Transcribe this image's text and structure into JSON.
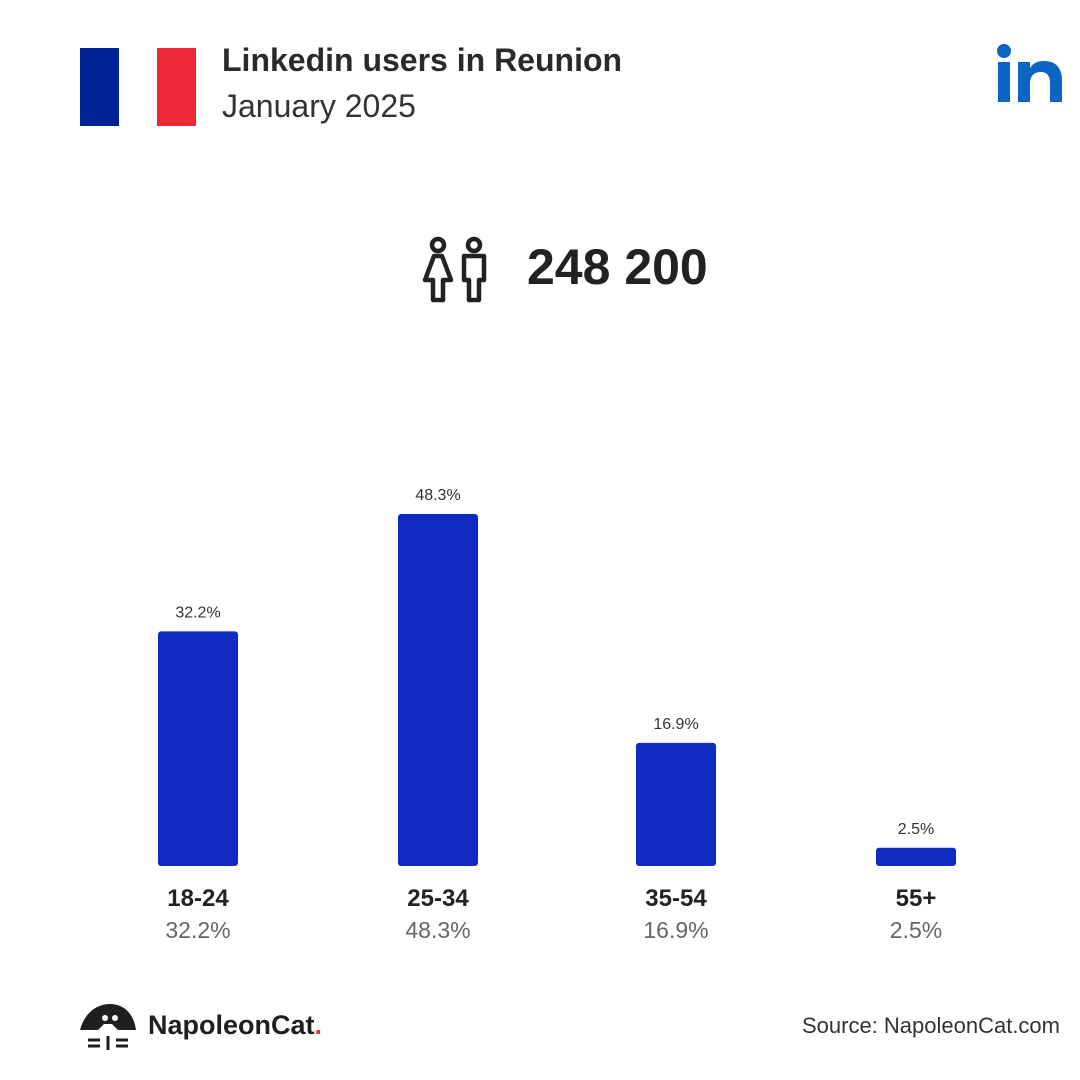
{
  "header": {
    "title": "Linkedin users in Reunion",
    "subtitle": "January 2025",
    "flag_colors": [
      "#002395",
      "#ffffff",
      "#ED2939"
    ],
    "platform_icon": "linkedin-icon",
    "platform_color": "#0A66C2"
  },
  "summary": {
    "icon": "users-icon",
    "total": "248 200"
  },
  "chart_data": {
    "type": "bar",
    "categories": [
      "18-24",
      "25-34",
      "35-54",
      "55+"
    ],
    "values": [
      32.2,
      48.3,
      16.9,
      2.5
    ],
    "value_labels": [
      "32.2%",
      "48.3%",
      "16.9%",
      "2.5%"
    ],
    "bar_color": "#102BC3",
    "title": "",
    "xlabel": "",
    "ylabel": "",
    "ylim": [
      0,
      48.3
    ],
    "grid": false
  },
  "footer": {
    "brand_name": "NapoleonCat",
    "brand_dot": ".",
    "source": "Source: NapoleonCat.com"
  }
}
